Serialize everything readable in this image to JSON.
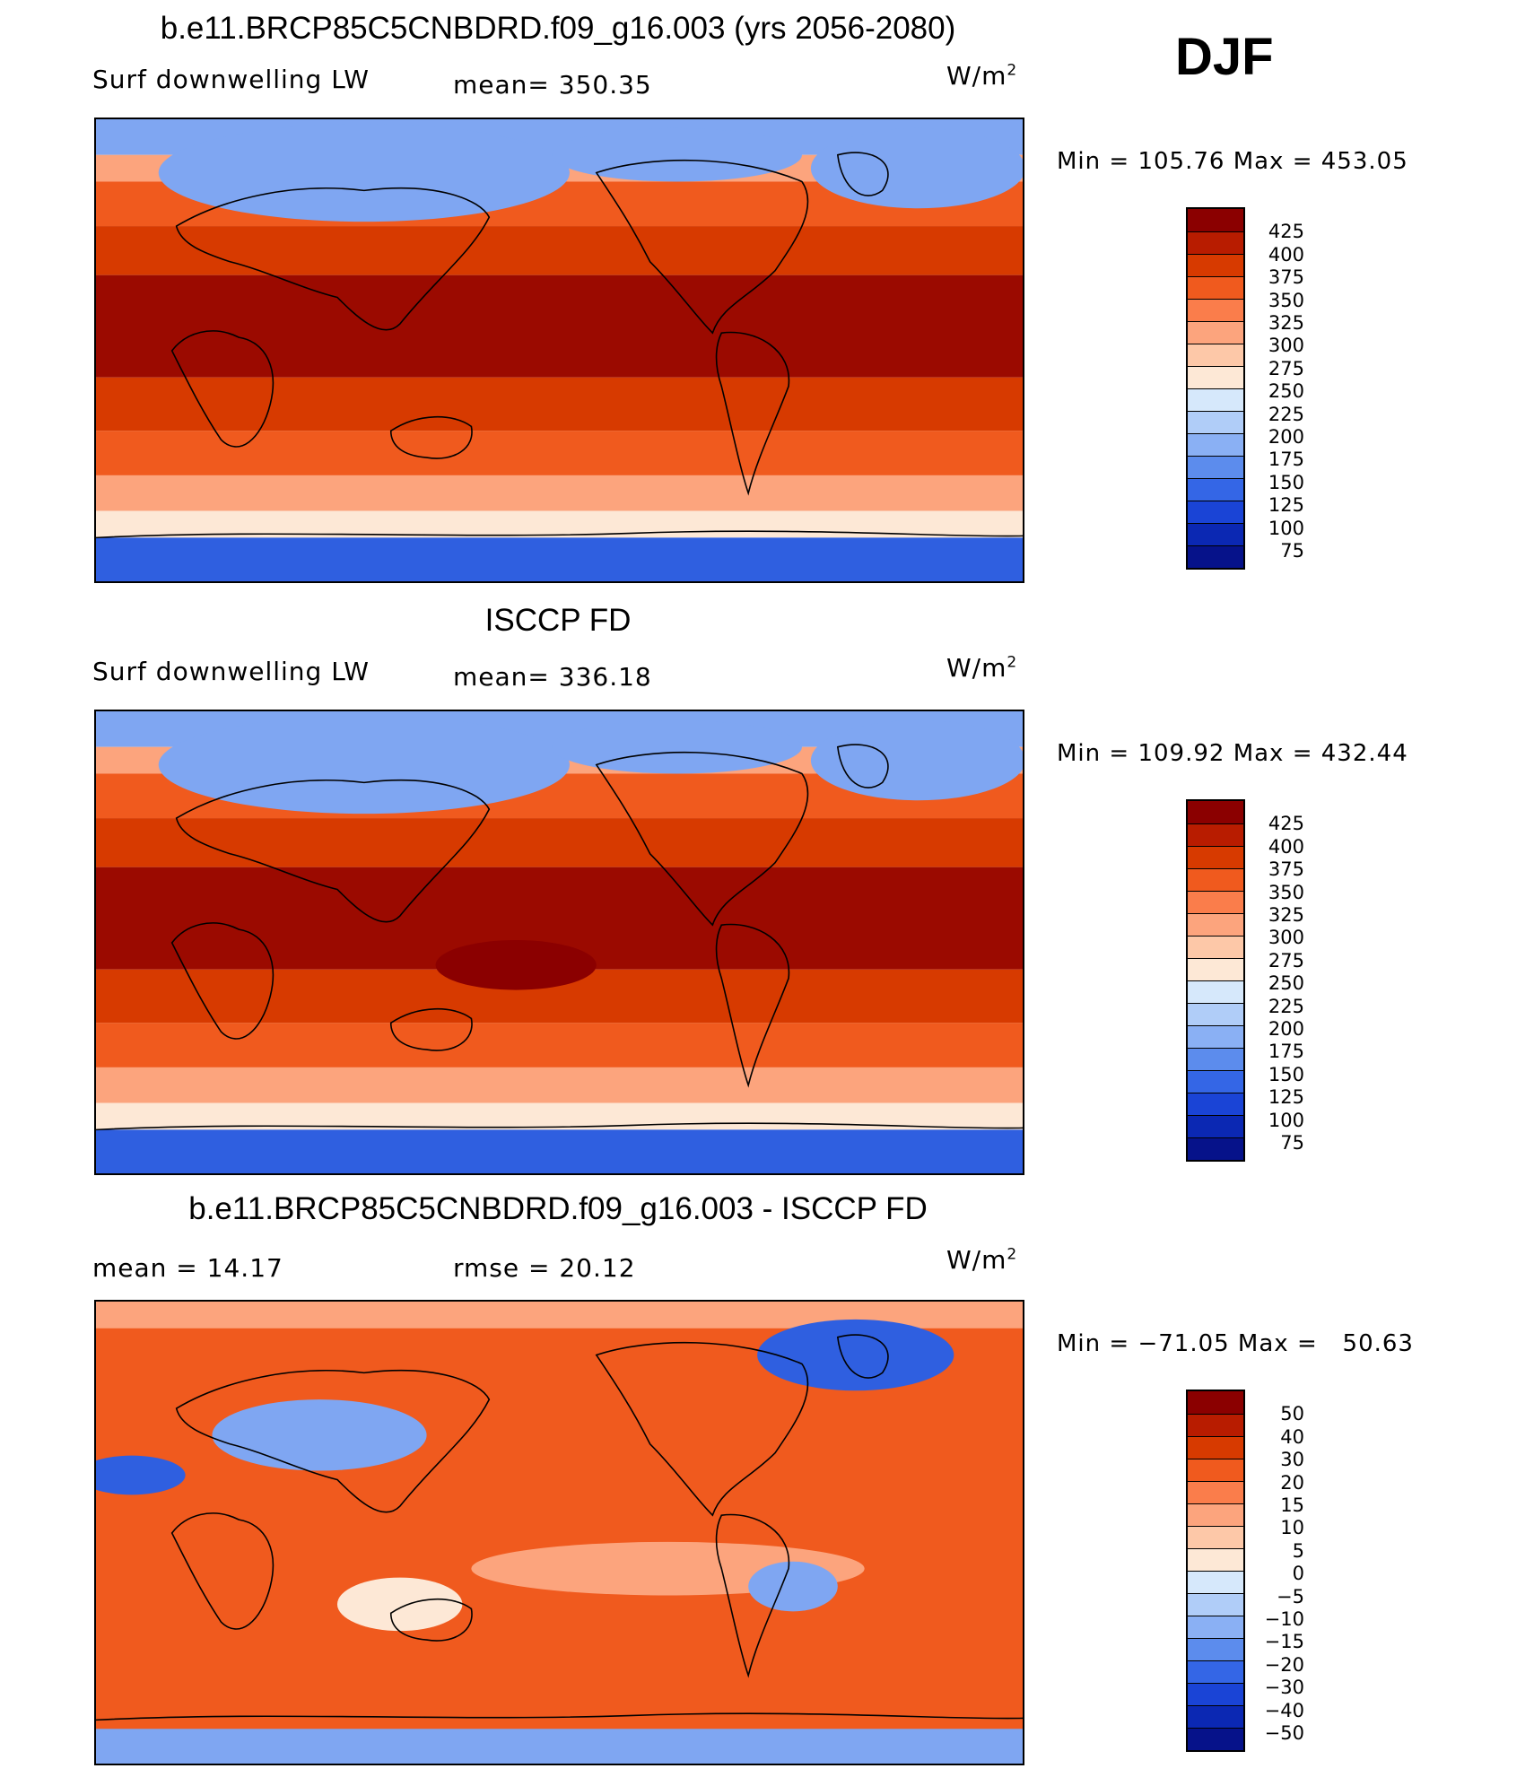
{
  "season": "DJF",
  "panels": [
    {
      "title": "b.e11.BRCP85C5CNBDRD.f09_g16.003 (yrs 2056-2080)",
      "left_label": "Surf downwelling LW",
      "mid_label": "mean= 350.35",
      "units": "W/m",
      "units_sup": "2",
      "minmax": "Min = 105.76 Max = 453.05",
      "map_name": "model-map"
    },
    {
      "title": "ISCCP FD",
      "left_label": "Surf downwelling LW",
      "mid_label": "mean= 336.18",
      "units": "W/m",
      "units_sup": "2",
      "minmax": "Min = 109.92 Max = 432.44",
      "map_name": "observation-map"
    },
    {
      "title": "b.e11.BRCP85C5CNBDRD.f09_g16.003 - ISCCP FD",
      "left_label": "mean =   14.17",
      "mid_label": "rmse =   20.12",
      "units": "W/m",
      "units_sup": "2",
      "minmax": "Min = −71.05 Max =   50.63",
      "map_name": "difference-map"
    }
  ],
  "colorbars": {
    "absolute": {
      "colors": [
        "#8b0000",
        "#b81c00",
        "#d73a00",
        "#f05a1e",
        "#fa7d4b",
        "#fca47d",
        "#fdc8a8",
        "#fde8d6",
        "#d6e8fb",
        "#b0cdf8",
        "#8ab0f4",
        "#5c8ced",
        "#3466e6",
        "#1a44d6",
        "#0b28b3",
        "#06128a"
      ],
      "labels": [
        "425",
        "400",
        "375",
        "350",
        "325",
        "300",
        "275",
        "250",
        "225",
        "200",
        "175",
        "150",
        "125",
        "100",
        "75"
      ]
    },
    "difference": {
      "colors": [
        "#8b0000",
        "#b81c00",
        "#d73a00",
        "#f05a1e",
        "#fa7d4b",
        "#fca47d",
        "#fdc8a8",
        "#fde8d6",
        "#d6e8fb",
        "#b0cdf8",
        "#8ab0f4",
        "#5c8ced",
        "#3466e6",
        "#1a44d6",
        "#0b28b3",
        "#06128a"
      ],
      "labels": [
        "50",
        "40",
        "30",
        "20",
        "15",
        "10",
        "5",
        "0",
        "−5",
        "−10",
        "−15",
        "−20",
        "−30",
        "−40",
        "−50"
      ]
    }
  },
  "map_colors": {
    "polar_blue": "#2f5fe0",
    "cold_blue": "#7fa6f2",
    "pale": "#fde8d6",
    "light_orange": "#fca47d",
    "orange": "#f05a1e",
    "red": "#d73a00",
    "dark_red": "#9b0a00",
    "coast": "#000000"
  }
}
